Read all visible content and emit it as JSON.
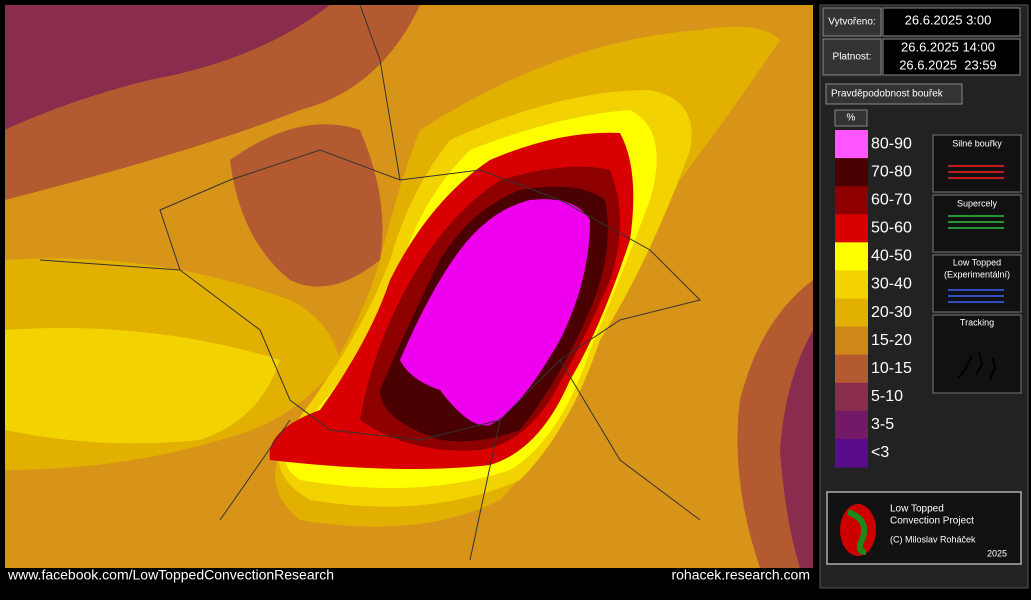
{
  "header": {
    "created_label": "Vytvořeno:",
    "created": "26.6.2025 3:00",
    "valid_label": "Platnost:",
    "valid_from": "26.6.2025 14:00",
    "valid_to": "26.6.2025  23:59"
  },
  "legend": {
    "title": "Pravděpodobnost bouřek",
    "unit": "%",
    "items": [
      {
        "label": "80-90",
        "color": "#ff55ff"
      },
      {
        "label": "70-80",
        "color": "#4a0000"
      },
      {
        "label": "60-70",
        "color": "#8e0000"
      },
      {
        "label": "50-60",
        "color": "#d80000"
      },
      {
        "label": "40-50",
        "color": "#ffff00"
      },
      {
        "label": "30-40",
        "color": "#f2d200"
      },
      {
        "label": "20-30",
        "color": "#e2b000"
      },
      {
        "label": "15-20",
        "color": "#cf8818"
      },
      {
        "label": "10-15",
        "color": "#b45a30"
      },
      {
        "label": "5-10",
        "color": "#8a2c4e"
      },
      {
        "label": "3-5",
        "color": "#741868"
      },
      {
        "label": "<3",
        "color": "#5a0c8a"
      }
    ]
  },
  "overlays": {
    "severe": "Silné bouřky",
    "supercells": "Supercely",
    "low_topped_1": "Low Topped",
    "low_topped_2": "(Experimentální)",
    "tracking": "Tracking"
  },
  "footer": {
    "left": "www.facebook.com/LowToppedConvectionResearch",
    "right": "rohacek.research.com"
  },
  "logo": {
    "line1": "Low Topped",
    "line2": "Convection Project",
    "credit": "(C) Miloslav Roháček",
    "year": "2025"
  }
}
